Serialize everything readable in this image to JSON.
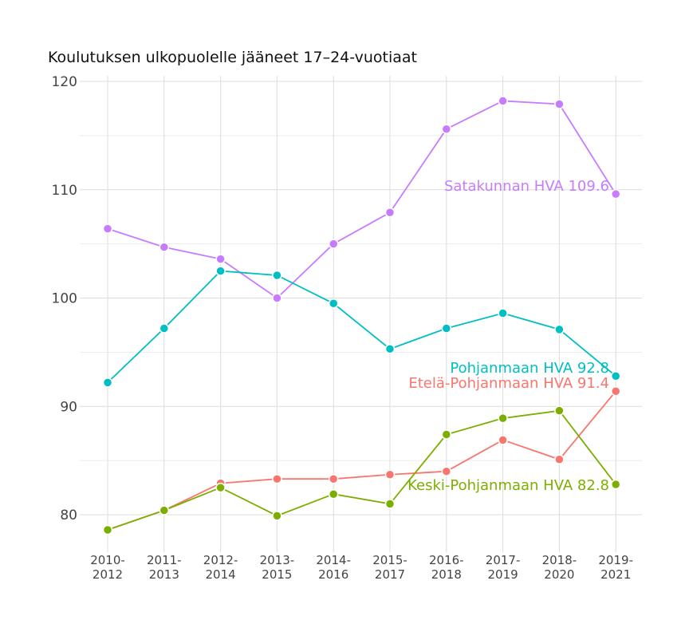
{
  "chart_data": {
    "type": "line",
    "title": "Koulutuksen ulkopuolelle jääneet 17–24-vuotiaat",
    "xlabel": "",
    "ylabel": "",
    "categories": [
      "2010-\n2012",
      "2011-\n2013",
      "2012-\n2014",
      "2013-\n2015",
      "2014-\n2016",
      "2015-\n2017",
      "2016-\n2018",
      "2017-\n2019",
      "2018-\n2020",
      "2019-\n2021"
    ],
    "yticks": [
      80,
      90,
      100,
      110,
      120
    ],
    "ylim": [
      76.5,
      120.5
    ],
    "grid": true,
    "legend": "none",
    "series": [
      {
        "name": "Satakunnan HVA",
        "label": "Satakunnan HVA 109.6",
        "color": "#C77CFF",
        "values": [
          106.4,
          104.7,
          103.6,
          100.0,
          105.0,
          107.9,
          115.6,
          118.2,
          117.9,
          109.6
        ]
      },
      {
        "name": "Pohjanmaan HVA",
        "label": "Pohjanmaan HVA 92.8",
        "color": "#00BFC4",
        "values": [
          92.2,
          97.2,
          102.5,
          102.1,
          99.5,
          95.3,
          97.2,
          98.6,
          97.1,
          92.8
        ]
      },
      {
        "name": "Etelä-Pohjanmaan HVA",
        "label": "Etelä-Pohjanmaan HVA 91.4",
        "color": "#F8766D",
        "values": [
          78.6,
          80.4,
          82.9,
          83.3,
          83.3,
          83.7,
          84.0,
          86.9,
          85.1,
          91.4
        ]
      },
      {
        "name": "Keski-Pohjanmaan HVA",
        "label": "Keski-Pohjanmaan HVA 82.8",
        "color": "#7CAE00",
        "values": [
          78.6,
          80.4,
          82.5,
          79.9,
          81.9,
          81.0,
          87.4,
          88.9,
          89.6,
          82.8
        ]
      }
    ]
  }
}
